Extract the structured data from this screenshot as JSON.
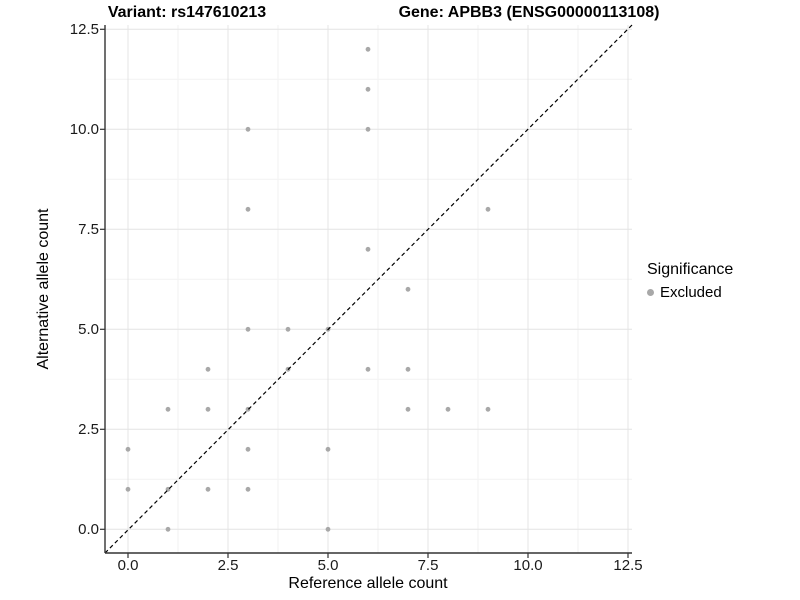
{
  "chart_data": {
    "type": "scatter",
    "title_left": "Variant: rs147610213",
    "title_right": "Gene: APBB3 (ENSG00000113108)",
    "xlabel": "Reference allele count",
    "ylabel": "Alternative allele count",
    "xlim": [
      -0.6,
      12.6
    ],
    "ylim": [
      -0.6,
      12.6
    ],
    "x_ticks": [
      0,
      2.5,
      5,
      7.5,
      10,
      12.5
    ],
    "y_ticks": [
      0,
      2.5,
      5,
      7.5,
      10,
      12.5
    ],
    "x_tick_labels": [
      "0.0",
      "2.5",
      "5.0",
      "7.5",
      "10.0",
      "12.5"
    ],
    "y_tick_labels": [
      "0.0",
      "2.5",
      "5.0",
      "7.5",
      "10.0",
      "12.5"
    ],
    "minor_ticks": [
      1.25,
      3.75,
      6.25,
      8.75,
      11.25
    ],
    "grid": true,
    "identity_line": {
      "equation": "y = x",
      "style": "dashed",
      "color": "#000000"
    },
    "series": [
      {
        "name": "Excluded",
        "color": "#a8a8a8",
        "points": [
          [
            0,
            1
          ],
          [
            0,
            2
          ],
          [
            1,
            0
          ],
          [
            1,
            1
          ],
          [
            1,
            3
          ],
          [
            2,
            1
          ],
          [
            2,
            3
          ],
          [
            2,
            4
          ],
          [
            3,
            1
          ],
          [
            3,
            2
          ],
          [
            3,
            3
          ],
          [
            3,
            5
          ],
          [
            3,
            8
          ],
          [
            3,
            10
          ],
          [
            4,
            4
          ],
          [
            4,
            5
          ],
          [
            5,
            0
          ],
          [
            5,
            2
          ],
          [
            5,
            5
          ],
          [
            6,
            4
          ],
          [
            6,
            7
          ],
          [
            6,
            10
          ],
          [
            6,
            11
          ],
          [
            6,
            12
          ],
          [
            7,
            3
          ],
          [
            7,
            4
          ],
          [
            7,
            6
          ],
          [
            8,
            3
          ],
          [
            9,
            3
          ],
          [
            9,
            8
          ]
        ]
      }
    ],
    "legend": {
      "title": "Significance",
      "position": "right",
      "items": [
        {
          "label": "Excluded",
          "color": "#a8a8a8"
        }
      ]
    },
    "colors": {
      "background": "#ffffff",
      "major_grid": "#e4e4e4",
      "minor_grid": "#f2f2f2",
      "axis_line": "#333333",
      "tick_text": "#1a1a1a",
      "point": "#a8a8a8"
    }
  }
}
